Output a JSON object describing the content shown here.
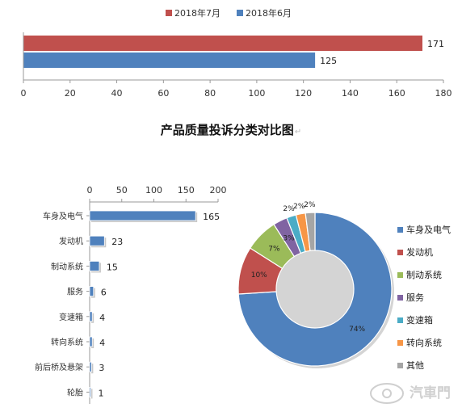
{
  "page_title": "产品质量投诉分类对比图",
  "title_mark": "↵",
  "watermark": "汽車門",
  "colors": {
    "jul": "#c0504d",
    "jun": "#4f81bd",
    "bar": "#4f81bd"
  },
  "chart_data": [
    {
      "type": "bar",
      "orientation": "horizontal",
      "categories": [
        ""
      ],
      "series": [
        {
          "name": "2018年7月",
          "values": [
            171
          ],
          "color": "#c0504d"
        },
        {
          "name": "2018年6月",
          "values": [
            125
          ],
          "color": "#4f81bd"
        }
      ],
      "xlim": [
        0,
        180
      ],
      "xticks": [
        0,
        20,
        40,
        60,
        80,
        100,
        120,
        140,
        160,
        180
      ],
      "legend": "top",
      "grid": false
    },
    {
      "type": "bar",
      "orientation": "horizontal",
      "categories": [
        "车身及电气",
        "发动机",
        "制动系统",
        "服务",
        "变速箱",
        "转向系统",
        "前后桥及悬架",
        "轮胎"
      ],
      "values": [
        165,
        23,
        15,
        6,
        4,
        4,
        3,
        1
      ],
      "xlim": [
        0,
        200
      ],
      "xticks": [
        0,
        50,
        100,
        150,
        200
      ],
      "axis_position": "top",
      "grid": false
    },
    {
      "type": "pie",
      "donut": true,
      "labels": [
        "车身及电气",
        "发动机",
        "制动系统",
        "服务",
        "变速箱",
        "转向系统",
        "其他"
      ],
      "values": [
        74,
        10,
        7,
        3,
        2,
        2,
        2
      ],
      "value_labels": [
        "74%",
        "10%",
        "7%",
        "3%",
        "2%",
        "2%",
        "2%"
      ],
      "colors": [
        "#4f81bd",
        "#c0504d",
        "#9bbb59",
        "#8064a2",
        "#4bacc6",
        "#f79646",
        "#a5a5a5"
      ],
      "legend": "right"
    }
  ]
}
